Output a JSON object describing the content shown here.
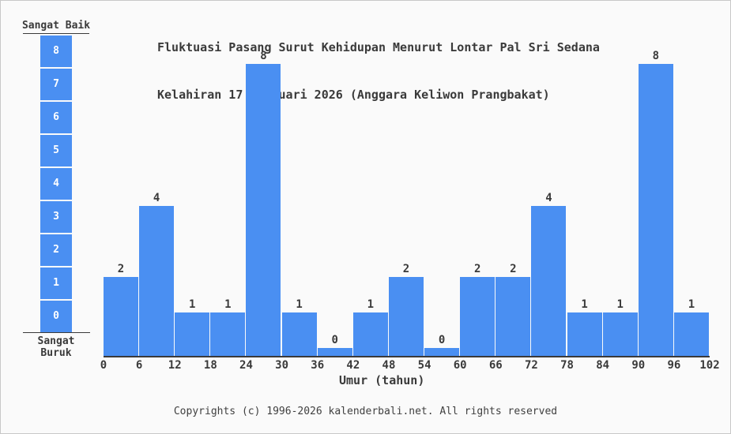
{
  "title": {
    "line1": "Fluktuasi Pasang Surut Kehidupan Menurut Lontar Pal Sri Sedana",
    "line2": "Kelahiran 17 Februari 2026 (Anggara Keliwon Prangbakat)"
  },
  "legend": {
    "top_label": "Sangat Baik",
    "bottom_label": "Sangat Buruk",
    "levels": [
      8,
      7,
      6,
      5,
      4,
      3,
      2,
      1,
      0
    ]
  },
  "chart_data": {
    "type": "bar",
    "title": "Fluktuasi Pasang Surut Kehidupan Menurut Lontar Pal Sri Sedana Kelahiran 17 Februari 2026 (Anggara Keliwon Prangbakat)",
    "xlabel": "Umur (tahun)",
    "ylabel": "",
    "x_ticks": [
      0,
      6,
      12,
      18,
      24,
      30,
      36,
      42,
      48,
      54,
      60,
      66,
      72,
      78,
      84,
      90,
      96,
      102
    ],
    "categories": [
      "0-6",
      "6-12",
      "12-18",
      "18-24",
      "24-30",
      "30-36",
      "36-42",
      "42-48",
      "48-54",
      "54-60",
      "60-66",
      "66-72",
      "72-78",
      "78-84",
      "84-90",
      "90-96",
      "96-102"
    ],
    "values": [
      2,
      4,
      1,
      1,
      8,
      1,
      0,
      1,
      2,
      0,
      2,
      2,
      4,
      1,
      1,
      8,
      1
    ],
    "ylim": [
      0,
      8
    ],
    "grid": false,
    "legend_position": "left",
    "bar_color": "#4a8ff2"
  },
  "colors": {
    "bar": "#4a8ff2",
    "text": "#3a3a3a",
    "background": "#fafafa",
    "separator": "#ffffff"
  },
  "footer": {
    "text": "Copyrights (c) 1996-2026 kalenderbali.net. All rights reserved"
  }
}
